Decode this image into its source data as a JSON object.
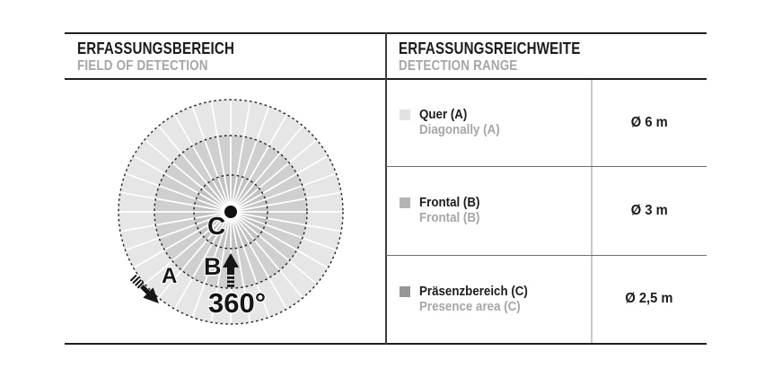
{
  "left_panel": {
    "title": "ERFASSUNGSBEREICH",
    "subtitle": "FIELD OF DETECTION"
  },
  "right_panel": {
    "title": "ERFASSUNGSREICHWEITE",
    "subtitle": "DETECTION RANGE"
  },
  "chart_data": {
    "type": "radial-detection-diagram",
    "sectors": 36,
    "label_360": "360°",
    "outer_radius_px": 125,
    "ring_outline_color": "#222222",
    "spoke_color": "#ffffff",
    "center_dot_color": "#111111",
    "rings": [
      {
        "id": "A",
        "label": "Quer (A)",
        "label_en": "Diagonally (A)",
        "range": "Ø 6 m",
        "radius_px": 125,
        "fill": "#e6e6e6",
        "swatch": "#e2e2e2"
      },
      {
        "id": "B",
        "label": "Frontal (B)",
        "label_en": "Frontal (B)",
        "range": "Ø 3 m",
        "radius_px": 85,
        "fill": "#cfcfcf",
        "swatch": "#b4b4b4"
      },
      {
        "id": "C",
        "label": "Präsenzbereich (C)",
        "label_en": "Presence area (C)",
        "range": "Ø 2,5 m",
        "radius_px": 41,
        "fill": "#c2c2c2",
        "swatch": "#979797"
      }
    ]
  }
}
